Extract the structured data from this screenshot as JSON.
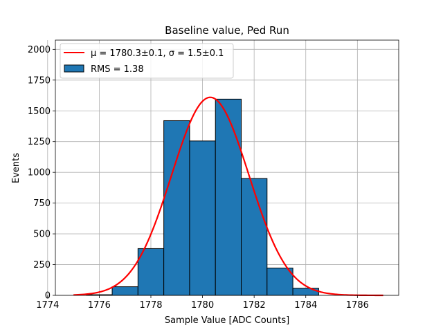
{
  "chart_data": {
    "type": "bar",
    "title": "Baseline value, Ped Run",
    "xlabel": "Sample Value [ADC Counts]",
    "ylabel": "Events",
    "xlim": [
      1774.3,
      1787.6
    ],
    "ylim": [
      0,
      2075
    ],
    "xticks": [
      1774,
      1776,
      1778,
      1780,
      1782,
      1784,
      1786
    ],
    "yticks": [
      0,
      250,
      500,
      750,
      1000,
      1250,
      1500,
      1750,
      2000
    ],
    "grid": true,
    "legend_position": "top-left",
    "bins": [
      {
        "x0": 1775.5,
        "x1": 1776.5,
        "count": 5
      },
      {
        "x0": 1776.5,
        "x1": 1777.5,
        "count": 70
      },
      {
        "x0": 1777.5,
        "x1": 1778.5,
        "count": 380
      },
      {
        "x0": 1778.5,
        "x1": 1779.5,
        "count": 1420
      },
      {
        "x0": 1779.5,
        "x1": 1780.5,
        "count": 1255
      },
      {
        "x0": 1780.5,
        "x1": 1781.5,
        "count": 1595
      },
      {
        "x0": 1781.5,
        "x1": 1782.5,
        "count": 950
      },
      {
        "x0": 1782.5,
        "x1": 1783.5,
        "count": 222
      },
      {
        "x0": 1783.5,
        "x1": 1784.5,
        "count": 58
      }
    ],
    "fit": {
      "type": "gaussian",
      "mu": 1780.3,
      "sigma": 1.5,
      "amplitude": 1610,
      "x_range": [
        1775,
        1787
      ]
    },
    "series": [
      {
        "name": "μ = 1780.3±0.1, σ = 1.5±0.1",
        "type": "line",
        "color": "#ff0000"
      },
      {
        "name": "RMS = 1.38",
        "type": "bar",
        "color": "#1f77b4"
      }
    ]
  }
}
